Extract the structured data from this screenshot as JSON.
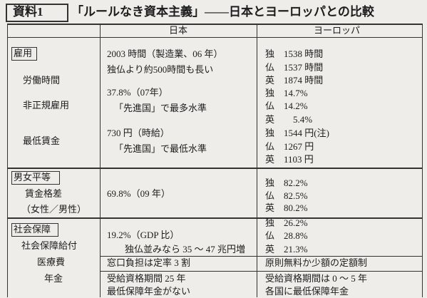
{
  "header": {
    "label": "資料1",
    "title": "「ルールなき資本主義」——日本とヨーロッパとの比較"
  },
  "table": {
    "columns": [
      "日本",
      "ヨーロッパ"
    ],
    "sections": [
      {
        "name": "雇用",
        "rows": [
          {
            "item": [
              "労働時間"
            ],
            "japan": [
              "2003 時間（製造業、06 年）",
              "独仏より約500時間も長い"
            ],
            "europe": [
              "独　1538 時間",
              "仏　1537 時間",
              "英　1874 時間"
            ]
          },
          {
            "item": [
              "非正規雇用"
            ],
            "japan": [
              "37.8%（07年）",
              "「先進国」で最多水準"
            ],
            "europe": [
              "独　14.7%",
              "仏　14.2%",
              "英　　5.4%"
            ]
          },
          {
            "item": [
              "最低賃金"
            ],
            "japan": [
              "730 円（時給）",
              "「先進国」で最低水準"
            ],
            "europe": [
              "独　1544 円(注)",
              "仏　1267 円",
              "英　1103 円"
            ]
          }
        ]
      },
      {
        "name": "男女平等",
        "rows": [
          {
            "item": [
              "賃金格差",
              "（女性／男性）"
            ],
            "japan": [
              "69.8%（09 年）"
            ],
            "europe": [
              "独　82.2%",
              "仏　82.5%",
              "英　80.2%"
            ]
          }
        ]
      },
      {
        "name": "社会保障",
        "rows": [
          {
            "item": [
              "社会保障給付"
            ],
            "japan": [
              "19.2%（GDP 比）",
              "独仏並みなら 35 ～ 47 兆円増"
            ],
            "europe": [
              "独　26.2%",
              "仏　28.8%",
              "英　21.3%"
            ]
          },
          {
            "item": [
              "医療費"
            ],
            "japan": [
              "窓口負担は定率 3 割"
            ],
            "europe": [
              "原則無料か少額の定額制"
            ]
          },
          {
            "item": [
              "年金"
            ],
            "japan": [
              "受給資格期間 25 年",
              "最低保障年金がない"
            ],
            "europe": [
              "受給資格期間は 0 ～ 5 年",
              "各国に最低保障年金"
            ]
          }
        ]
      }
    ]
  }
}
